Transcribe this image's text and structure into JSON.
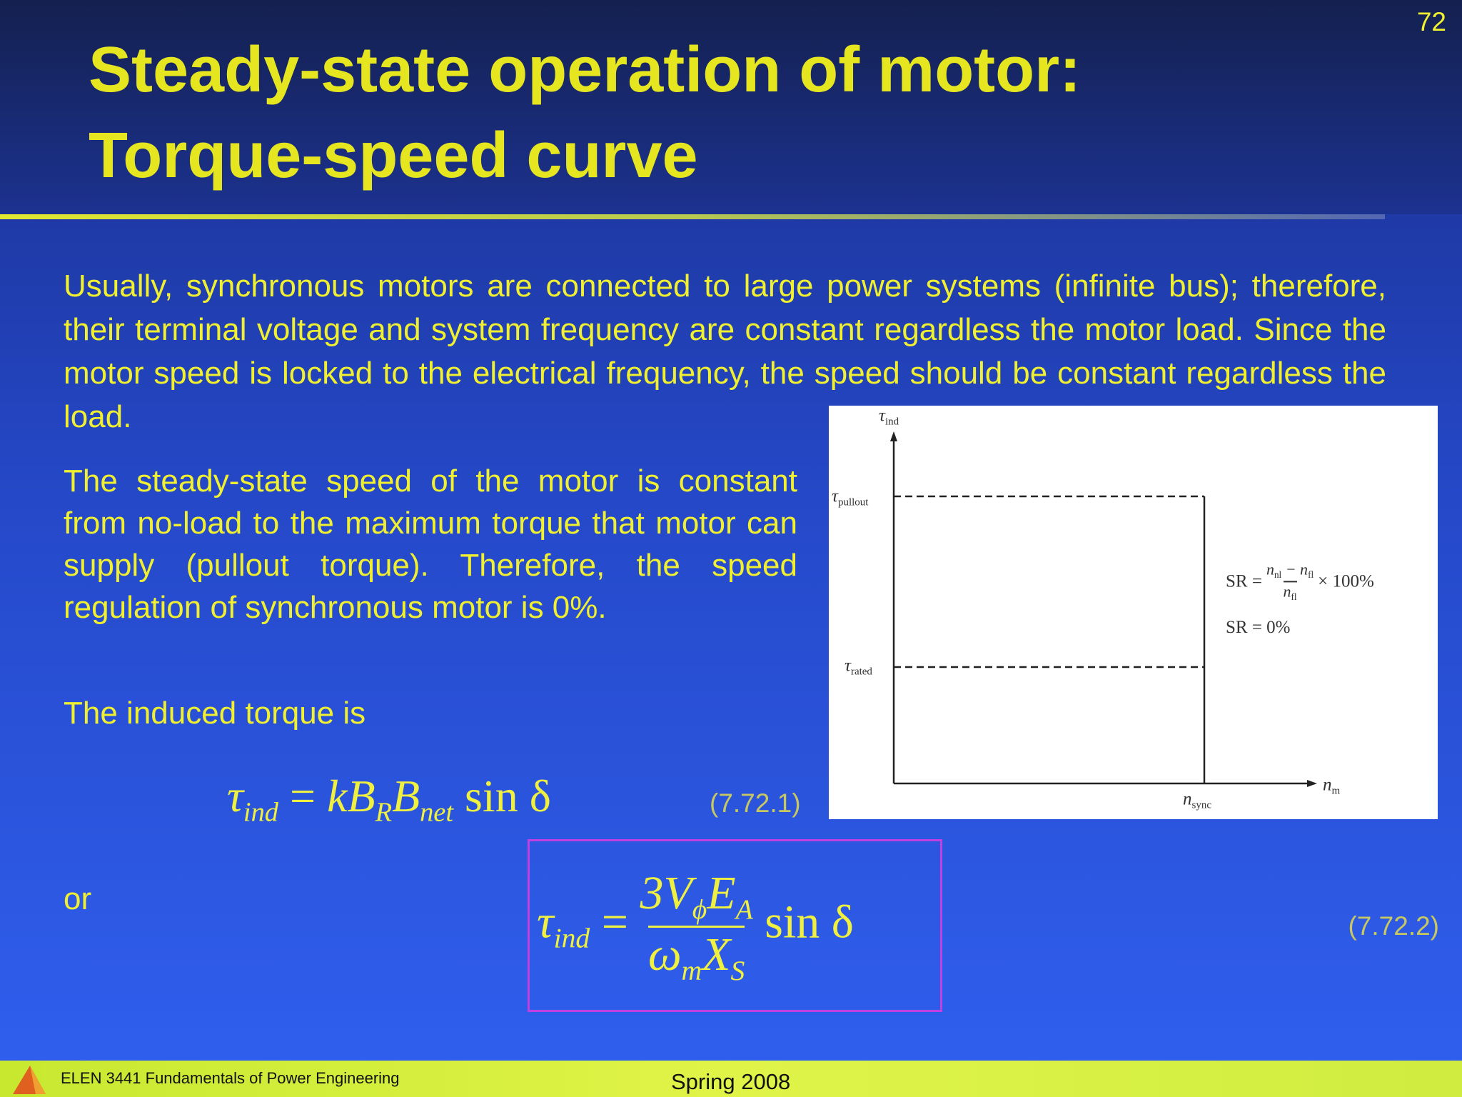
{
  "slide_number": "72",
  "header": {
    "title_lines": [
      "Steady-state operation of motor:",
      "Torque-speed curve"
    ]
  },
  "body": {
    "paragraphs": [
      "Usually, synchronous motors are connected to large power systems (infinite bus); therefore, their terminal voltage and system frequency are constant regardless the motor load. Since the motor speed is locked to the electrical frequency, the speed should be constant regardless the load.",
      "The steady-state speed of the motor is constant from no-load to the maximum torque that motor can supply (pullout torque). Therefore, the speed regulation of synchronous motor is 0%.",
      "The induced torque is",
      "or"
    ]
  },
  "equations": [
    {
      "symbol": "τ",
      "symbol_sub": "ind",
      "equals": "=",
      "terms": [
        {
          "text": "kB",
          "sub": "R"
        },
        {
          "text": "B",
          "sub": "net"
        }
      ],
      "tail": "sin δ",
      "number": "(7.72.1)"
    },
    {
      "symbol": "τ",
      "symbol_sub": "ind",
      "equals": "=",
      "numerator": [
        {
          "text": "3V",
          "sub": "ϕ"
        },
        {
          "text": "E",
          "sub": "A"
        }
      ],
      "denominator": [
        {
          "text": "ω",
          "sub": "m"
        },
        {
          "text": "X",
          "sub": "S"
        }
      ],
      "tail": "sin δ",
      "number": "(7.72.2)"
    }
  ],
  "figure": {
    "y_axis": {
      "symbol": "τ",
      "sub": "ind"
    },
    "pullout": {
      "symbol": "τ",
      "sub": "pullout"
    },
    "rated": {
      "symbol": "τ",
      "sub": "rated"
    },
    "x_axis": {
      "symbol": "n",
      "sub": "m"
    },
    "sync": {
      "symbol": "n",
      "sub": "sync"
    },
    "sr_formula": {
      "lhs": "SR =",
      "numerator": [
        {
          "text": "n",
          "sub": "nl"
        },
        {
          "text": " − n",
          "sub": "fl"
        }
      ],
      "denominator": {
        "text": "n",
        "sub": "fl"
      },
      "factor": "× 100%"
    },
    "sr_value": "SR = 0%"
  },
  "footer": {
    "course": "ELEN 3441 Fundamentals of Power Engineering",
    "term": "Spring 2008"
  }
}
